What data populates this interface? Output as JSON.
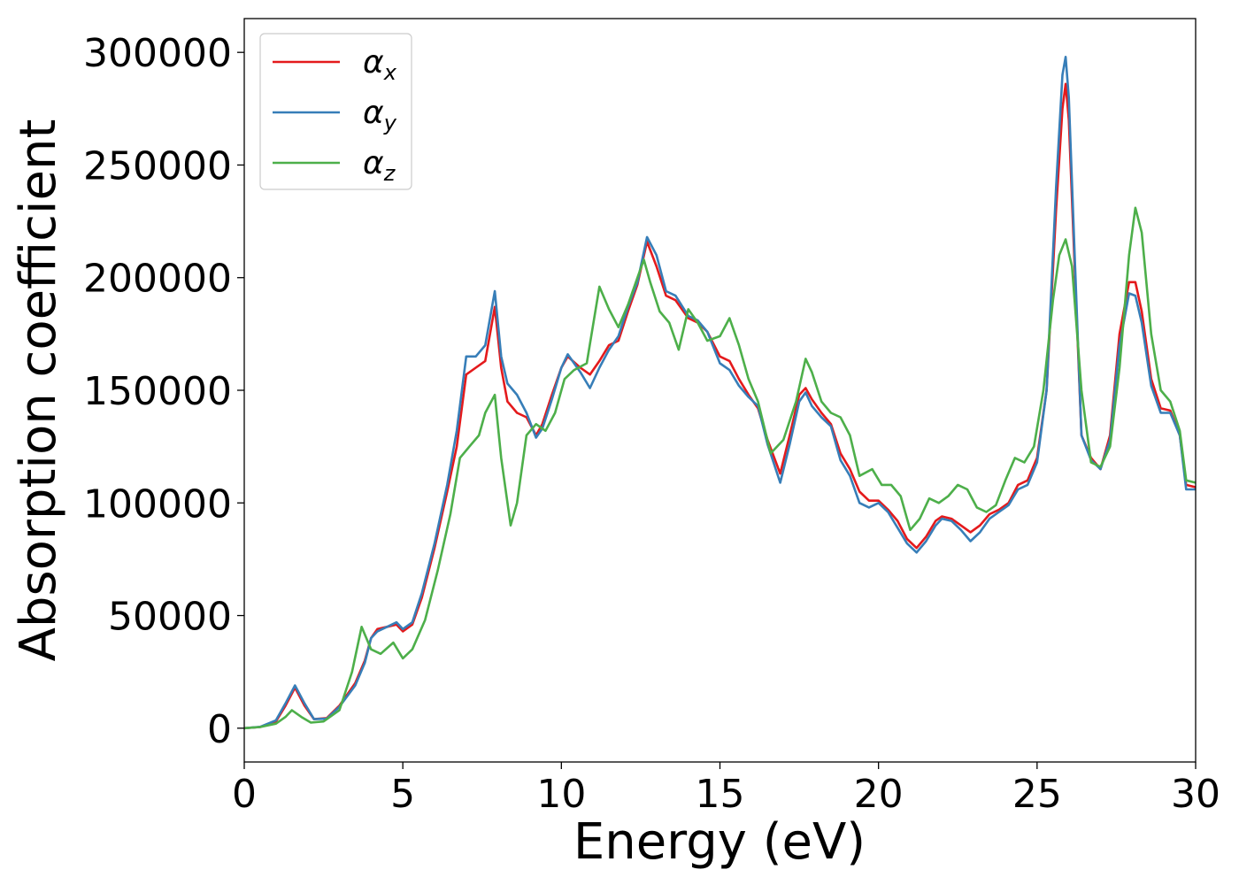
{
  "chart_data": {
    "type": "line",
    "xlabel": "Energy (eV)",
    "ylabel": "Absorption coefficient",
    "xlim": [
      0,
      30
    ],
    "ylim": [
      -15000,
      315000
    ],
    "xticks": [
      0,
      5,
      10,
      15,
      20,
      25,
      30
    ],
    "yticks": [
      0,
      50000,
      100000,
      150000,
      200000,
      250000,
      300000
    ],
    "xtick_labels": [
      "0",
      "5",
      "10",
      "15",
      "20",
      "25",
      "30"
    ],
    "ytick_labels": [
      "0",
      "50000",
      "100000",
      "150000",
      "200000",
      "250000",
      "300000"
    ],
    "grid": false,
    "legend_position": "top-left",
    "series": [
      {
        "name": "α",
        "subscript": "x",
        "color": "#e41a1c",
        "x": [
          0,
          0.5,
          1.0,
          1.3,
          1.6,
          1.9,
          2.2,
          2.6,
          3.0,
          3.5,
          3.8,
          4.0,
          4.2,
          4.5,
          4.8,
          5.0,
          5.3,
          5.6,
          6.0,
          6.4,
          6.7,
          7.0,
          7.3,
          7.6,
          7.9,
          8.1,
          8.3,
          8.6,
          8.9,
          9.2,
          9.4,
          9.7,
          10.0,
          10.2,
          10.6,
          10.9,
          11.2,
          11.5,
          11.8,
          12.1,
          12.4,
          12.7,
          13.0,
          13.3,
          13.6,
          14.0,
          14.3,
          14.6,
          15.0,
          15.3,
          15.6,
          15.9,
          16.2,
          16.5,
          16.9,
          17.2,
          17.5,
          17.7,
          17.9,
          18.2,
          18.5,
          18.8,
          19.1,
          19.4,
          19.7,
          20.0,
          20.3,
          20.6,
          20.9,
          21.2,
          21.5,
          21.8,
          22.0,
          22.3,
          22.6,
          22.9,
          23.2,
          23.5,
          23.8,
          24.1,
          24.4,
          24.7,
          25.0,
          25.3,
          25.6,
          25.8,
          25.9,
          26.0,
          26.2,
          26.4,
          26.7,
          27.0,
          27.3,
          27.6,
          27.9,
          28.1,
          28.3,
          28.6,
          28.9,
          29.2,
          29.5,
          29.7,
          30.0
        ],
        "y": [
          0,
          500,
          3000,
          10000,
          18000,
          10000,
          4000,
          4500,
          10000,
          20000,
          30000,
          40000,
          44000,
          45000,
          46000,
          43000,
          46000,
          58000,
          80000,
          105000,
          125000,
          157000,
          160000,
          163000,
          187000,
          160000,
          145000,
          140000,
          138000,
          130000,
          135000,
          148000,
          160000,
          165000,
          160000,
          157000,
          163000,
          170000,
          172000,
          185000,
          197000,
          216000,
          205000,
          192000,
          190000,
          182000,
          180000,
          176000,
          165000,
          163000,
          155000,
          148000,
          142000,
          128000,
          113000,
          130000,
          148000,
          151000,
          146000,
          140000,
          135000,
          122000,
          115000,
          105000,
          101000,
          101000,
          97000,
          92000,
          84000,
          80000,
          85000,
          92000,
          94000,
          93000,
          90000,
          87000,
          90000,
          95000,
          97000,
          100000,
          108000,
          110000,
          120000,
          150000,
          230000,
          275000,
          286000,
          270000,
          200000,
          130000,
          120000,
          115000,
          130000,
          175000,
          198000,
          198000,
          185000,
          155000,
          142000,
          141000,
          130000,
          108000,
          107000
        ]
      },
      {
        "name": "α",
        "subscript": "y",
        "color": "#377eb8",
        "x": [
          0,
          0.5,
          1.0,
          1.3,
          1.6,
          1.9,
          2.2,
          2.6,
          3.0,
          3.5,
          3.8,
          4.0,
          4.2,
          4.5,
          4.8,
          5.0,
          5.3,
          5.6,
          6.0,
          6.4,
          6.7,
          7.0,
          7.3,
          7.6,
          7.9,
          8.1,
          8.3,
          8.6,
          8.9,
          9.2,
          9.4,
          9.7,
          10.0,
          10.2,
          10.6,
          10.9,
          11.2,
          11.5,
          11.8,
          12.1,
          12.4,
          12.7,
          13.0,
          13.3,
          13.6,
          14.0,
          14.3,
          14.6,
          15.0,
          15.3,
          15.6,
          15.9,
          16.2,
          16.5,
          16.9,
          17.2,
          17.5,
          17.7,
          17.9,
          18.2,
          18.5,
          18.8,
          19.1,
          19.4,
          19.7,
          20.0,
          20.3,
          20.6,
          20.9,
          21.2,
          21.5,
          21.8,
          22.0,
          22.3,
          22.6,
          22.9,
          23.2,
          23.5,
          23.8,
          24.1,
          24.4,
          24.7,
          25.0,
          25.3,
          25.6,
          25.8,
          25.9,
          26.0,
          26.2,
          26.4,
          26.7,
          27.0,
          27.3,
          27.6,
          27.9,
          28.1,
          28.3,
          28.6,
          28.9,
          29.2,
          29.5,
          29.7,
          30.0
        ],
        "y": [
          0,
          600,
          3500,
          11000,
          19000,
          11000,
          4000,
          4200,
          9500,
          19000,
          29000,
          40000,
          43000,
          45000,
          47000,
          44000,
          47000,
          60000,
          82000,
          108000,
          132000,
          165000,
          165000,
          170000,
          194000,
          165000,
          153000,
          148000,
          140000,
          129000,
          133000,
          146000,
          160000,
          166000,
          158000,
          151000,
          160000,
          168000,
          174000,
          187000,
          198000,
          218000,
          210000,
          194000,
          192000,
          183000,
          181000,
          176000,
          162000,
          159000,
          152000,
          147000,
          143000,
          126000,
          109000,
          126000,
          145000,
          149000,
          143000,
          138000,
          134000,
          119000,
          112000,
          100000,
          98000,
          100000,
          96000,
          89000,
          82000,
          78000,
          83000,
          90000,
          93000,
          92000,
          88000,
          83000,
          87000,
          93000,
          96000,
          99000,
          106000,
          108000,
          118000,
          150000,
          240000,
          290000,
          298000,
          280000,
          205000,
          130000,
          119000,
          115000,
          128000,
          170000,
          193000,
          192000,
          180000,
          152000,
          140000,
          140000,
          130000,
          106000,
          106000
        ]
      },
      {
        "name": "α",
        "subscript": "z",
        "color": "#4daf4a",
        "x": [
          0,
          0.5,
          1.0,
          1.3,
          1.5,
          1.8,
          2.1,
          2.5,
          3.0,
          3.4,
          3.7,
          4.0,
          4.3,
          4.7,
          5.0,
          5.3,
          5.7,
          6.1,
          6.5,
          6.8,
          7.1,
          7.4,
          7.6,
          7.9,
          8.1,
          8.4,
          8.6,
          8.9,
          9.2,
          9.5,
          9.8,
          10.1,
          10.4,
          10.8,
          11.2,
          11.5,
          11.8,
          12.1,
          12.4,
          12.6,
          12.8,
          13.1,
          13.4,
          13.7,
          14.0,
          14.3,
          14.6,
          15.0,
          15.3,
          15.6,
          15.9,
          16.2,
          16.6,
          17.0,
          17.4,
          17.7,
          17.9,
          18.2,
          18.5,
          18.8,
          19.1,
          19.4,
          19.8,
          20.1,
          20.4,
          20.7,
          21.0,
          21.3,
          21.6,
          21.9,
          22.2,
          22.5,
          22.8,
          23.1,
          23.4,
          23.7,
          24.0,
          24.3,
          24.6,
          24.9,
          25.2,
          25.5,
          25.7,
          25.9,
          26.1,
          26.4,
          26.7,
          27.0,
          27.3,
          27.6,
          27.9,
          28.1,
          28.3,
          28.6,
          28.9,
          29.2,
          29.5,
          29.7,
          30.0
        ],
        "y": [
          0,
          500,
          2000,
          5000,
          8000,
          5000,
          2500,
          3000,
          8000,
          25000,
          45000,
          35000,
          33000,
          38000,
          31000,
          35000,
          48000,
          70000,
          95000,
          120000,
          125000,
          130000,
          140000,
          148000,
          120000,
          90000,
          100000,
          130000,
          135000,
          132000,
          140000,
          155000,
          159000,
          162000,
          196000,
          186000,
          178000,
          188000,
          200000,
          208000,
          198000,
          185000,
          180000,
          168000,
          186000,
          180000,
          172000,
          174000,
          182000,
          170000,
          155000,
          145000,
          122000,
          128000,
          145000,
          164000,
          158000,
          145000,
          140000,
          138000,
          130000,
          112000,
          115000,
          108000,
          108000,
          103000,
          88000,
          93000,
          102000,
          100000,
          103000,
          108000,
          106000,
          98000,
          96000,
          99000,
          110000,
          120000,
          118000,
          125000,
          150000,
          190000,
          210000,
          217000,
          205000,
          150000,
          118000,
          116000,
          125000,
          160000,
          210000,
          231000,
          220000,
          175000,
          150000,
          145000,
          132000,
          110000,
          109000
        ]
      }
    ]
  }
}
